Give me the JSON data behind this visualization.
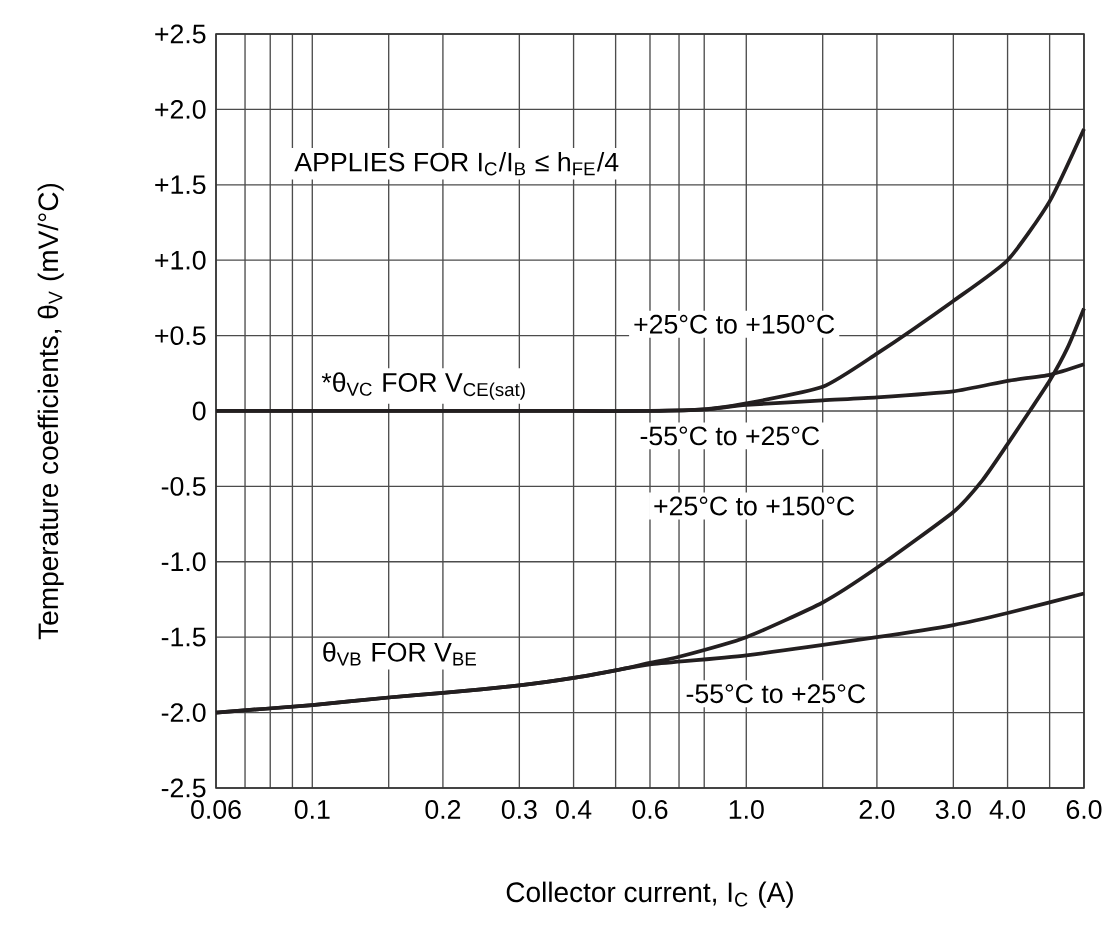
{
  "chart_data": {
    "type": "line",
    "xlabel": "Collector current, I$_{C}$ (A)",
    "ylabel": "Temperature coefficients, θ$_{V}$ (mV/°C)",
    "log": "x",
    "grid": true,
    "marker": "none",
    "line_style": "solid",
    "xlim": [
      0.06,
      6.0
    ],
    "ylim": [
      -2.5,
      2.5
    ],
    "xticks": [
      0.06,
      {
        "value": 0.07,
        "label": null
      },
      {
        "value": 0.08,
        "label": null
      },
      {
        "value": 0.09,
        "label": null
      },
      0.1,
      {
        "value": 0.15,
        "label": null
      },
      0.2,
      0.3,
      0.4,
      {
        "value": 0.5,
        "label": null
      },
      0.6,
      {
        "value": 0.7,
        "label": null
      },
      {
        "value": 0.8,
        "label": null
      },
      {
        "value": 1.0,
        "label": "1.0"
      },
      {
        "value": 1.5,
        "label": null
      },
      {
        "value": 2.0,
        "label": "2.0"
      },
      {
        "value": 3.0,
        "label": "3.0"
      },
      {
        "value": 4.0,
        "label": "4.0"
      },
      {
        "value": 5.0,
        "label": null
      },
      {
        "value": 6.0,
        "label": "6.0"
      }
    ],
    "yticks": [
      {
        "value": -2.5,
        "label": "-2.5"
      },
      {
        "value": -2.0,
        "label": "-2.0"
      },
      {
        "value": -1.5,
        "label": "-1.5"
      },
      {
        "value": -1.0,
        "label": "-1.0"
      },
      {
        "value": -0.5,
        "label": "-0.5"
      },
      0,
      {
        "value": 0.5,
        "label": "+0.5"
      },
      {
        "value": 1.0,
        "label": "+1.0"
      },
      {
        "value": 1.5,
        "label": "+1.5"
      },
      {
        "value": 2.0,
        "label": "+2.0"
      },
      {
        "value": 2.5,
        "label": "+2.5"
      }
    ],
    "series": [
      {
        "color": "#231f20",
        "x": [
          0.06,
          0.1,
          0.2,
          0.4,
          0.6,
          0.8,
          1.0,
          1.5,
          2,
          3,
          4,
          5,
          6
        ],
        "values": [
          0,
          0,
          0,
          0,
          0,
          0.01,
          0.05,
          0.16,
          0.38,
          0.73,
          1.0,
          1.39,
          1.87
        ]
      },
      {
        "color": "#231f20",
        "x": [
          0.06,
          0.1,
          0.2,
          0.4,
          0.6,
          0.8,
          1.0,
          1.5,
          2,
          3,
          4,
          5,
          6
        ],
        "values": [
          0,
          0,
          0,
          0,
          0,
          0.01,
          0.04,
          0.07,
          0.09,
          0.13,
          0.2,
          0.24,
          0.31
        ]
      },
      {
        "color": "#231f20",
        "x": [
          0.06,
          0.1,
          0.15,
          0.2,
          0.3,
          0.4,
          0.5,
          0.6,
          1.0,
          2,
          3,
          4,
          6
        ],
        "values": [
          -2.0,
          -1.95,
          -1.9,
          -1.87,
          -1.82,
          -1.77,
          -1.72,
          -1.68,
          -1.62,
          -1.5,
          -1.42,
          -1.34,
          -1.21
        ]
      },
      {
        "color": "#231f20",
        "x": [
          0.06,
          0.1,
          0.15,
          0.2,
          0.3,
          0.4,
          0.5,
          0.6,
          0.7,
          1.0,
          1.5,
          2,
          3,
          3.5,
          4,
          4.5,
          5,
          5.5,
          6
        ],
        "values": [
          -2.0,
          -1.95,
          -1.9,
          -1.87,
          -1.82,
          -1.77,
          -1.72,
          -1.67,
          -1.63,
          -1.5,
          -1.27,
          -1.04,
          -0.67,
          -0.46,
          -0.22,
          0.0,
          0.2,
          0.42,
          0.68
        ]
      }
    ],
    "annotations": [
      "APPLIES FOR I$_{C}$/I$_{B}$ ≤ h$_{FE}$/4",
      "*θ$_{VC}$ FOR V$_{CE(sat)}$",
      "+25°C to +150°C",
      "-55°C to +25°C",
      "+25°C to +150°C",
      "θ$_{VB}$ FOR V$_{BE}$",
      "-55°C to +25°C"
    ]
  }
}
